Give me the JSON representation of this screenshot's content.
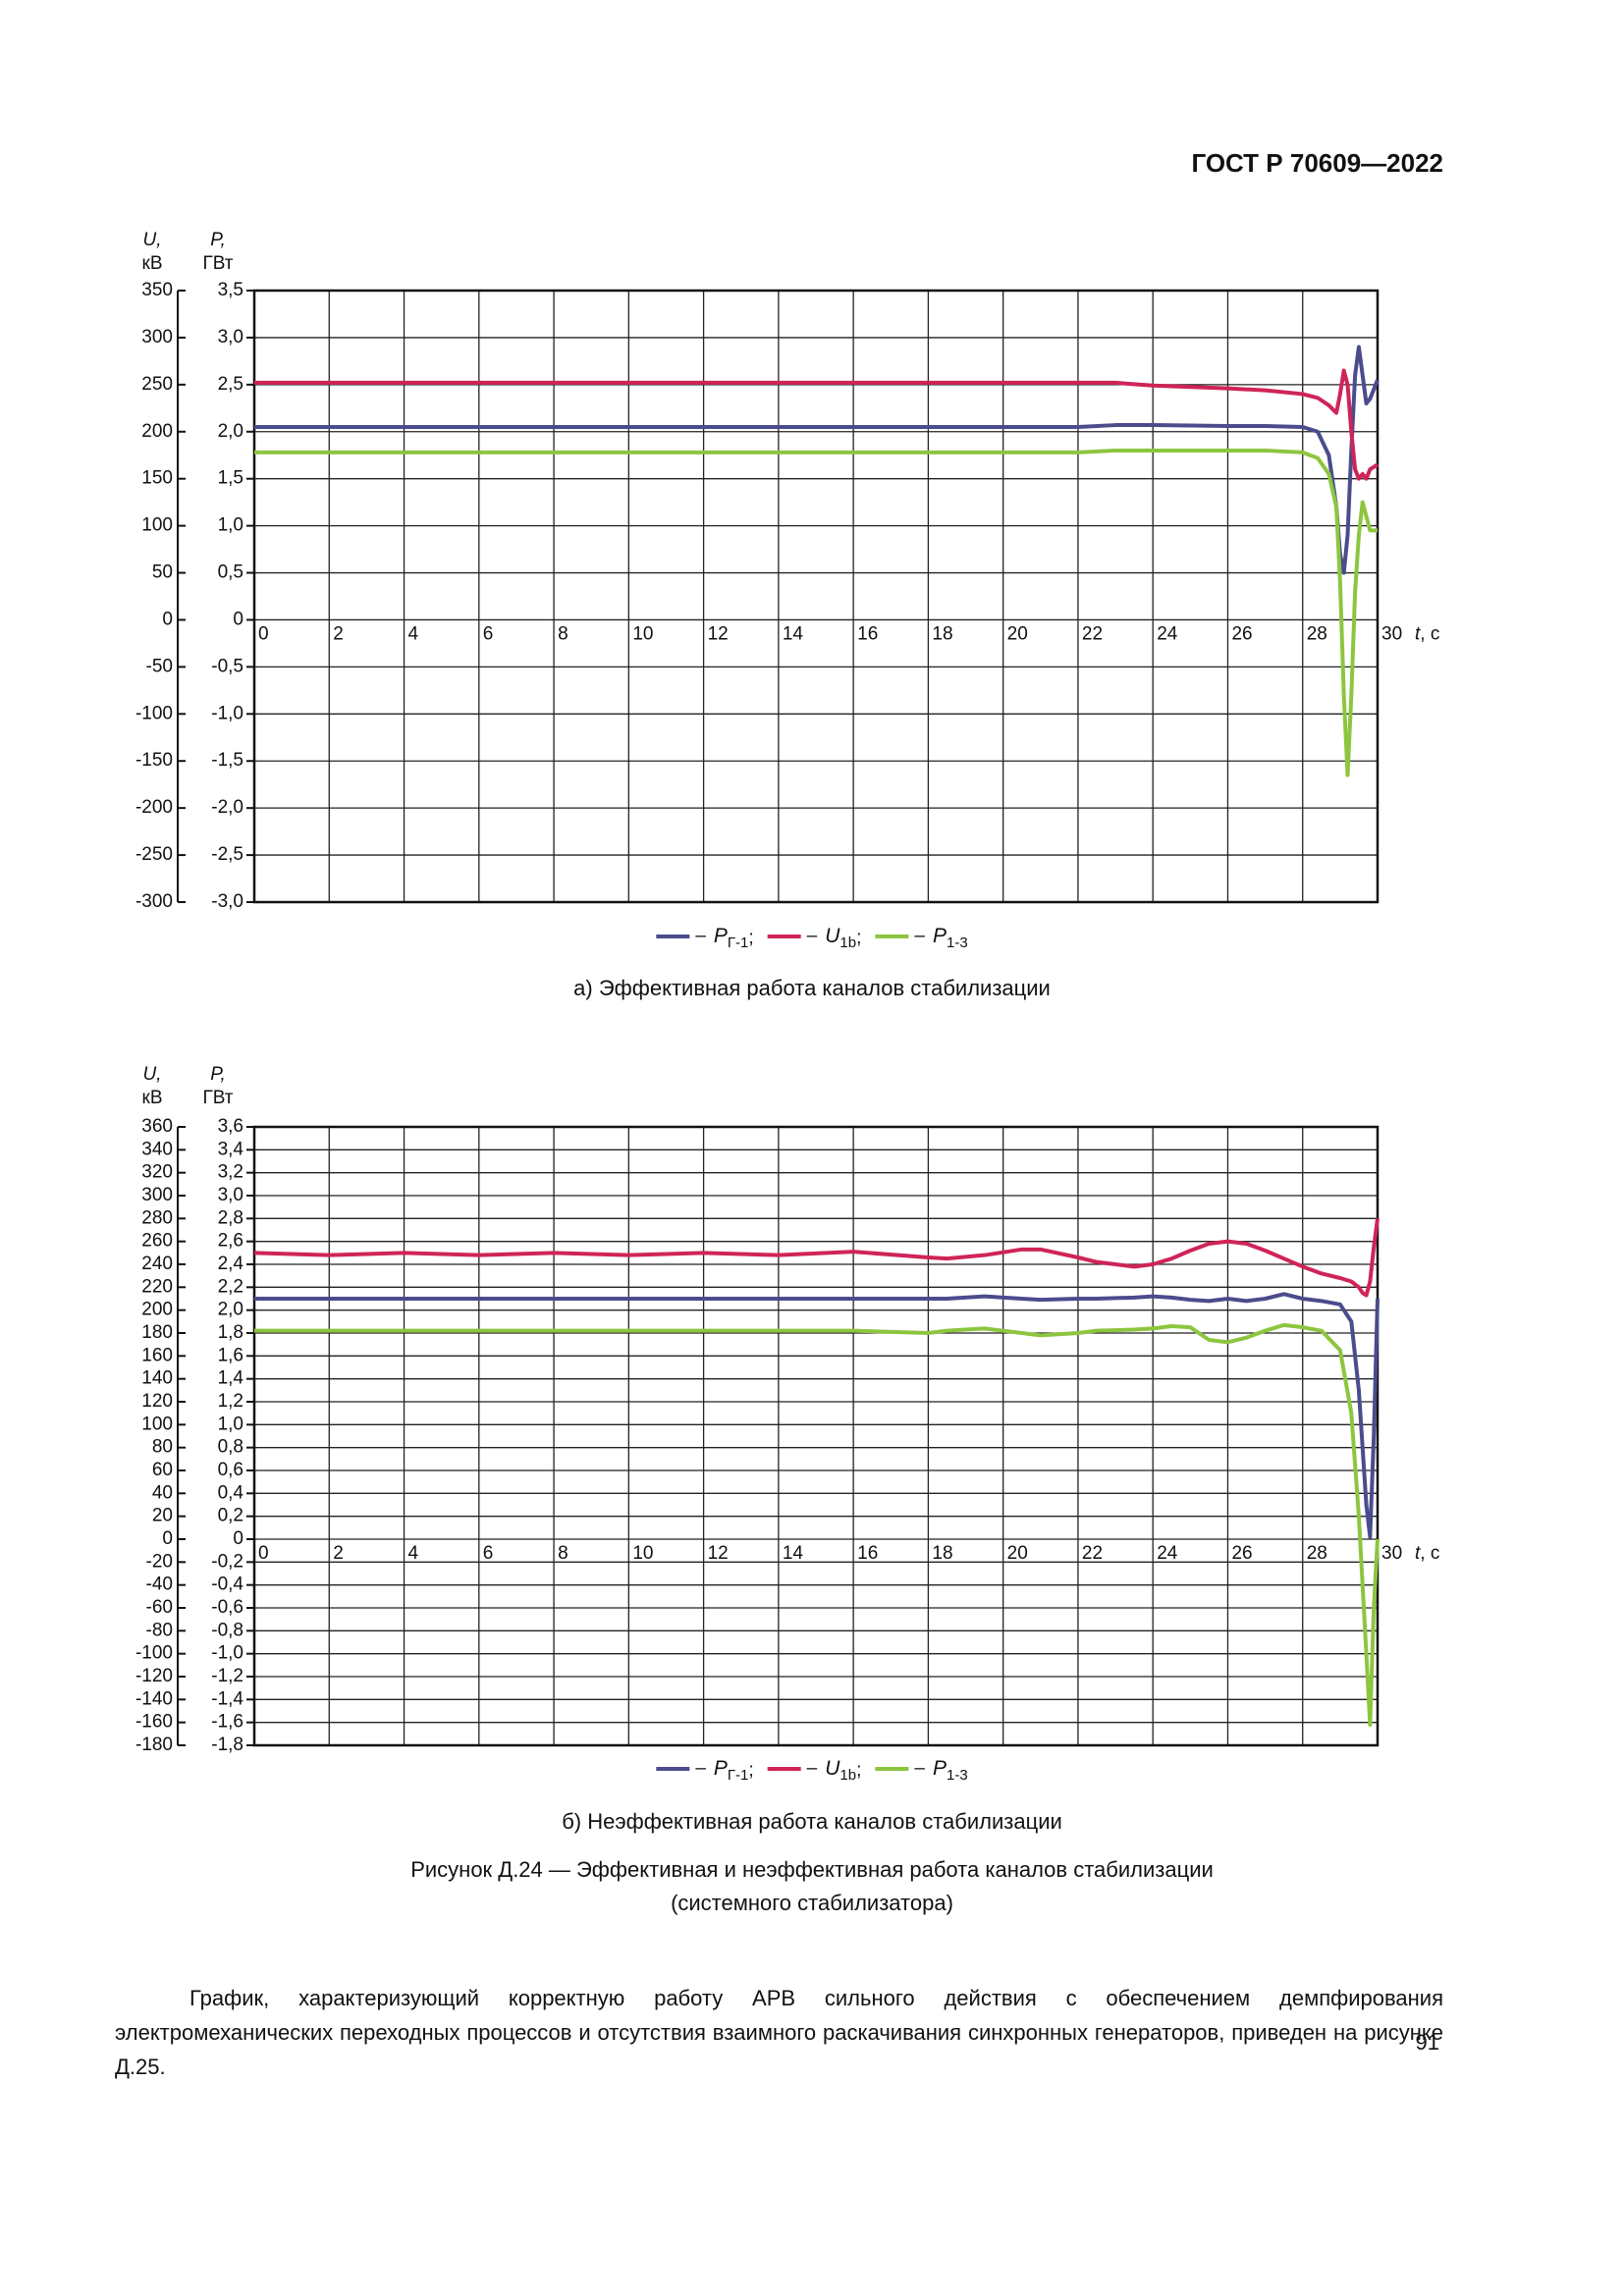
{
  "header": {
    "title": "ГОСТ Р 70609—2022"
  },
  "chart_data": [
    {
      "type": "line",
      "caption": "а) Эффективная работа каналов стабилизации",
      "ylabel": [
        "U,",
        "кВ"
      ],
      "y2label": [
        "P,",
        "ГВт"
      ],
      "xlabel": "t, с",
      "legend_dash": "–",
      "legend_separator": ";",
      "grid": true,
      "xlim": [
        0,
        30
      ],
      "xticks": [
        0,
        2,
        4,
        6,
        8,
        10,
        12,
        14,
        16,
        18,
        20,
        22,
        24,
        26,
        28,
        30
      ],
      "ylim": [
        -300,
        350
      ],
      "yticks": [
        -300,
        -250,
        -200,
        -150,
        -100,
        -50,
        0,
        50,
        100,
        150,
        200,
        250,
        300,
        350
      ],
      "y2lim": [
        -3.0,
        3.5
      ],
      "y2ticks": [
        {
          "value": -3.0,
          "label": "-3,0"
        },
        {
          "value": -2.5,
          "label": "-2,5"
        },
        {
          "value": -2.0,
          "label": "-2,0"
        },
        {
          "value": -1.5,
          "label": "-1,5"
        },
        {
          "value": -1.0,
          "label": "-1,0"
        },
        {
          "value": -0.5,
          "label": "-0,5"
        },
        0,
        {
          "value": 0.5,
          "label": "0,5"
        },
        {
          "value": 1.0,
          "label": "1,0"
        },
        {
          "value": 1.5,
          "label": "1,5"
        },
        {
          "value": 2.0,
          "label": "2,0"
        },
        {
          "value": 2.5,
          "label": "2,5"
        },
        {
          "value": 3.0,
          "label": "3,0"
        },
        {
          "value": 3.5,
          "label": "3,5"
        }
      ],
      "x": [
        0,
        5,
        10,
        15,
        20,
        22,
        23,
        24,
        26,
        27,
        28,
        28.4,
        28.7,
        28.9,
        29.0,
        29.1,
        29.2,
        29.3,
        29.4,
        29.5,
        29.6,
        29.7,
        29.8,
        30
      ],
      "series": [
        {
          "name": "PГ-1",
          "color": "#4b4c8c",
          "axis": "y2",
          "values": [
            2.05,
            2.05,
            2.05,
            2.05,
            2.05,
            2.05,
            2.07,
            2.07,
            2.06,
            2.06,
            2.05,
            2.0,
            1.75,
            1.2,
            0.7,
            0.5,
            0.9,
            1.8,
            2.6,
            2.9,
            2.6,
            2.3,
            2.35,
            2.55
          ]
        },
        {
          "name": "U1b",
          "color": "#cf2458",
          "values": [
            252,
            252,
            252,
            252,
            252,
            252,
            252,
            249,
            246,
            244,
            240,
            236,
            228,
            220,
            240,
            265,
            250,
            200,
            160,
            150,
            155,
            150,
            160,
            165
          ]
        },
        {
          "name": "P1-3",
          "color": "#8cc63f",
          "axis": "y2",
          "values": [
            1.78,
            1.78,
            1.78,
            1.78,
            1.78,
            1.78,
            1.8,
            1.8,
            1.8,
            1.8,
            1.78,
            1.72,
            1.55,
            1.2,
            0.4,
            -0.8,
            -1.65,
            -0.8,
            0.3,
            0.9,
            1.25,
            1.1,
            0.95,
            0.95
          ]
        }
      ]
    },
    {
      "type": "line",
      "caption": "б) Неэффективная работа каналов стабилизации",
      "ylabel": [
        "U,",
        "кВ"
      ],
      "y2label": [
        "P,",
        "ГВт"
      ],
      "xlabel": "t, с",
      "legend_dash": "–",
      "legend_separator": ";",
      "grid": true,
      "xlim": [
        0,
        30
      ],
      "xticks": [
        0,
        2,
        4,
        6,
        8,
        10,
        12,
        14,
        16,
        18,
        20,
        22,
        24,
        26,
        28,
        30
      ],
      "ylim": [
        -180,
        360
      ],
      "yticks": [
        -180,
        -160,
        -140,
        -120,
        -100,
        -80,
        -60,
        -40,
        -20,
        0,
        20,
        40,
        60,
        80,
        100,
        120,
        140,
        160,
        180,
        200,
        220,
        240,
        260,
        280,
        300,
        320,
        340,
        360
      ],
      "y2lim": [
        -1.8,
        3.6
      ],
      "y2ticks": [
        {
          "value": -1.8,
          "label": "-1,8"
        },
        {
          "value": -1.6,
          "label": "-1,6"
        },
        {
          "value": -1.4,
          "label": "-1,4"
        },
        {
          "value": -1.2,
          "label": "-1,2"
        },
        {
          "value": -1.0,
          "label": "-1,0"
        },
        {
          "value": -0.8,
          "label": "-0,8"
        },
        {
          "value": -0.6,
          "label": "-0,6"
        },
        {
          "value": -0.4,
          "label": "-0,4"
        },
        {
          "value": -0.2,
          "label": "-0,2"
        },
        0,
        {
          "value": 0.2,
          "label": "0,2"
        },
        {
          "value": 0.4,
          "label": "0,4"
        },
        {
          "value": 0.6,
          "label": "0,6"
        },
        {
          "value": 0.8,
          "label": "0,8"
        },
        {
          "value": 1.0,
          "label": "1,0"
        },
        {
          "value": 1.2,
          "label": "1,2"
        },
        {
          "value": 1.4,
          "label": "1,4"
        },
        {
          "value": 1.6,
          "label": "1,6"
        },
        {
          "value": 1.8,
          "label": "1,8"
        },
        {
          "value": 2.0,
          "label": "2,0"
        },
        {
          "value": 2.2,
          "label": "2,2"
        },
        {
          "value": 2.4,
          "label": "2,4"
        },
        {
          "value": 2.6,
          "label": "2,6"
        },
        {
          "value": 2.8,
          "label": "2,8"
        },
        {
          "value": 3.0,
          "label": "3,0"
        },
        {
          "value": 3.2,
          "label": "3,2"
        },
        {
          "value": 3.4,
          "label": "3,4"
        },
        {
          "value": 3.6,
          "label": "3,6"
        }
      ],
      "x": [
        0,
        2,
        4,
        6,
        8,
        10,
        12,
        14,
        16,
        18,
        18.5,
        19.5,
        20.5,
        21,
        22,
        22.5,
        23.5,
        24,
        24.5,
        25,
        25.5,
        26,
        26.5,
        27,
        27.5,
        28,
        28.5,
        29,
        29.3,
        29.5,
        29.6,
        29.7,
        29.8,
        29.9,
        30
      ],
      "series": [
        {
          "name": "PГ-1",
          "color": "#4b4c8c",
          "axis": "y2",
          "values": [
            2.1,
            2.1,
            2.1,
            2.1,
            2.1,
            2.1,
            2.1,
            2.1,
            2.1,
            2.1,
            2.1,
            2.12,
            2.1,
            2.09,
            2.1,
            2.1,
            2.11,
            2.12,
            2.11,
            2.09,
            2.08,
            2.1,
            2.08,
            2.1,
            2.14,
            2.1,
            2.08,
            2.05,
            1.9,
            1.3,
            0.8,
            0.3,
            0.02,
            0.9,
            2.1
          ]
        },
        {
          "name": "U1b",
          "color": "#cf2458",
          "values": [
            250,
            248,
            250,
            248,
            250,
            248,
            250,
            248,
            251,
            246,
            245,
            248,
            253,
            253,
            246,
            242,
            238,
            240,
            245,
            252,
            258,
            260,
            258,
            252,
            245,
            238,
            232,
            228,
            225,
            220,
            215,
            213,
            225,
            255,
            280
          ]
        },
        {
          "name": "P1-3",
          "color": "#8cc63f",
          "axis": "y2",
          "values": [
            1.82,
            1.82,
            1.82,
            1.82,
            1.82,
            1.82,
            1.82,
            1.82,
            1.82,
            1.8,
            1.82,
            1.84,
            1.8,
            1.78,
            1.8,
            1.82,
            1.83,
            1.84,
            1.86,
            1.85,
            1.74,
            1.72,
            1.76,
            1.82,
            1.87,
            1.85,
            1.82,
            1.65,
            1.1,
            0.2,
            -0.4,
            -1.0,
            -1.62,
            -0.6,
            0
          ]
        }
      ]
    }
  ],
  "figure_caption": [
    "Рисунок Д.24 — Эффективная и неэффективная работа каналов стабилизации",
    "(системного стабилизатора)"
  ],
  "paragraph": "График, характеризующий корректную работу АРВ сильного действия с обеспечением демпфирования электромеханических переходных процессов и отсутствия взаимного раскачивания синхронных генераторов, приведен на рисунке Д.25.",
  "page_number": "91"
}
